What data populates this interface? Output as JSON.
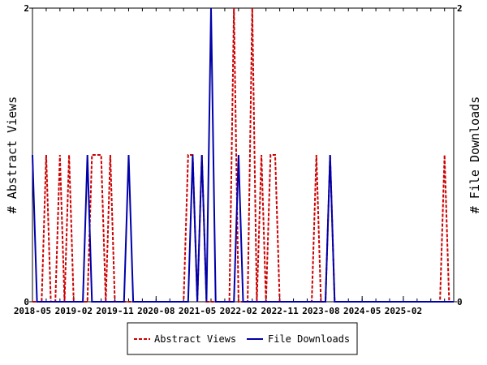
{
  "chart_data": {
    "type": "line",
    "x_ticks": [
      "2018-05",
      "2019-02",
      "2019-11",
      "2020-08",
      "2021-05",
      "2022-02",
      "2022-11",
      "2023-08",
      "2024-05",
      "2025-02"
    ],
    "y_left_ticks": [
      "0",
      "2"
    ],
    "y_right_ticks": [
      "0",
      "2"
    ],
    "ylabel_left": "# Abstract Views",
    "ylabel_right": "# File Downloads",
    "ylim_left": [
      0,
      2
    ],
    "ylim_right": [
      0,
      2
    ],
    "x_start": "2018-05",
    "x_end": "2026-01",
    "legend_position": "bottom-center",
    "series": [
      {
        "name": "Abstract Views",
        "color": "#cc0000",
        "dash": "dashed",
        "axis": "left",
        "points": [
          [
            "2018-05",
            0
          ],
          [
            "2018-07",
            0
          ],
          [
            "2018-08",
            1
          ],
          [
            "2018-09",
            0
          ],
          [
            "2018-10",
            0
          ],
          [
            "2018-11",
            1
          ],
          [
            "2018-12",
            0
          ],
          [
            "2019-01",
            1
          ],
          [
            "2019-02",
            0
          ],
          [
            "2019-05",
            0
          ],
          [
            "2019-06",
            1
          ],
          [
            "2019-07",
            1
          ],
          [
            "2019-08",
            1
          ],
          [
            "2019-09",
            0
          ],
          [
            "2019-10",
            1
          ],
          [
            "2019-11",
            0
          ],
          [
            "2021-02",
            0
          ],
          [
            "2021-03",
            1
          ],
          [
            "2021-04",
            1
          ],
          [
            "2021-05",
            0
          ],
          [
            "2021-06",
            1
          ],
          [
            "2021-07",
            0
          ],
          [
            "2021-12",
            0
          ],
          [
            "2022-01",
            2
          ],
          [
            "2022-02",
            0
          ],
          [
            "2022-04",
            0
          ],
          [
            "2022-05",
            2
          ],
          [
            "2022-06",
            0
          ],
          [
            "2022-07",
            1
          ],
          [
            "2022-08",
            0
          ],
          [
            "2022-09",
            1
          ],
          [
            "2022-10",
            1
          ],
          [
            "2022-11",
            0
          ],
          [
            "2023-06",
            0
          ],
          [
            "2023-07",
            1
          ],
          [
            "2023-08",
            0
          ],
          [
            "2023-09",
            0
          ],
          [
            "2023-10",
            1
          ],
          [
            "2023-11",
            0
          ],
          [
            "2025-10",
            0
          ],
          [
            "2025-11",
            1
          ],
          [
            "2025-12",
            0
          ]
        ]
      },
      {
        "name": "File Downloads",
        "color": "#0000aa",
        "dash": "solid",
        "axis": "right",
        "points": [
          [
            "2018-05",
            1
          ],
          [
            "2018-06",
            0
          ],
          [
            "2019-04",
            0
          ],
          [
            "2019-05",
            1
          ],
          [
            "2019-06",
            0
          ],
          [
            "2020-01",
            0
          ],
          [
            "2020-02",
            1
          ],
          [
            "2020-03",
            0
          ],
          [
            "2021-03",
            0
          ],
          [
            "2021-04",
            1
          ],
          [
            "2021-05",
            0
          ],
          [
            "2021-06",
            1
          ],
          [
            "2021-07",
            0
          ],
          [
            "2021-08",
            2
          ],
          [
            "2021-09",
            0
          ],
          [
            "2022-01",
            0
          ],
          [
            "2022-02",
            1
          ],
          [
            "2022-03",
            0
          ],
          [
            "2023-09",
            0
          ],
          [
            "2023-10",
            1
          ],
          [
            "2023-11",
            0
          ]
        ]
      }
    ]
  }
}
